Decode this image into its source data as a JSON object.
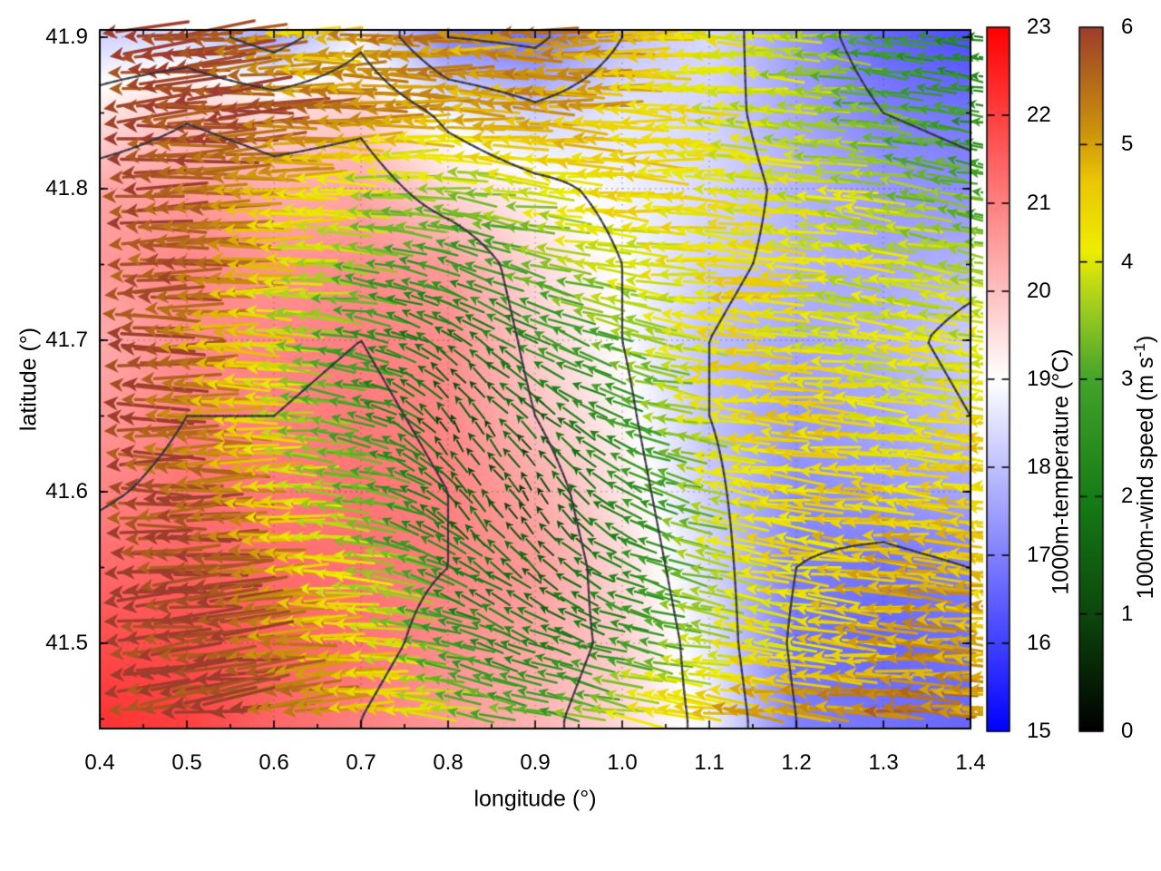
{
  "chart_data": {
    "type": "heatmap",
    "subtype": "temperature field with contour lines and wind-vector overlay colored by wind speed",
    "xlabel": "longitude (°)",
    "ylabel": "latitude (°)",
    "xlim": [
      0.4,
      1.4
    ],
    "ylim": [
      41.4437,
      41.9048
    ],
    "x_ticks": [
      0.4,
      0.5,
      0.6,
      0.7,
      0.8,
      0.9,
      1.0,
      1.1,
      1.2,
      1.3,
      1.4
    ],
    "x_tick_labels": [
      "0.4",
      "0.5",
      "0.6",
      "0.7",
      "0.8",
      "0.9",
      "1.0",
      "1.1",
      "1.2",
      "1.3",
      "1.4"
    ],
    "y_ticks": [
      41.5,
      41.6,
      41.7,
      41.8,
      41.9
    ],
    "y_tick_labels": [
      "41.5",
      "41.6",
      "41.7",
      "41.8",
      "41.9"
    ],
    "grid_dotted_at_major_ticks": true,
    "contour_levels": [
      17,
      18,
      19,
      20,
      21
    ],
    "contour_color": "#32323c",
    "grids": {
      "lon": [
        0.4,
        0.5,
        0.6,
        0.7,
        0.8,
        0.9,
        1.0,
        1.1,
        1.2,
        1.3,
        1.4
      ],
      "lat": [
        41.9,
        41.85,
        41.8,
        41.75,
        41.7,
        41.65,
        41.6,
        41.55,
        41.5,
        41.45
      ],
      "temperature": [
        [
          18.3,
          18.4,
          17.6,
          18.8,
          17.0,
          16.8,
          18.0,
          18.4,
          17.4,
          16.6,
          16.2
        ],
        [
          19.4,
          19.9,
          19.6,
          19.8,
          18.8,
          18.2,
          18.6,
          18.3,
          17.6,
          17.0,
          16.8
        ],
        [
          20.4,
          20.6,
          20.3,
          20.4,
          19.6,
          19.2,
          18.8,
          18.4,
          17.8,
          17.4,
          17.2
        ],
        [
          20.6,
          20.9,
          20.7,
          20.8,
          20.6,
          19.6,
          19.0,
          18.2,
          17.8,
          17.6,
          17.8
        ],
        [
          20.3,
          20.8,
          20.9,
          21.0,
          20.8,
          19.8,
          19.0,
          18.0,
          17.6,
          17.8,
          18.2
        ],
        [
          20.6,
          21.0,
          21.0,
          21.1,
          20.9,
          20.0,
          19.2,
          18.0,
          17.4,
          17.6,
          18.0
        ],
        [
          20.9,
          21.2,
          21.1,
          21.2,
          21.0,
          20.4,
          19.4,
          18.2,
          17.2,
          17.4,
          17.6
        ],
        [
          21.3,
          21.5,
          21.3,
          21.2,
          21.0,
          20.6,
          19.6,
          18.4,
          17.0,
          16.8,
          17.0
        ],
        [
          21.8,
          21.8,
          21.5,
          21.2,
          20.8,
          20.4,
          19.8,
          18.6,
          16.8,
          16.6,
          16.8
        ],
        [
          22.2,
          22.0,
          21.4,
          21.0,
          20.6,
          20.2,
          19.6,
          18.8,
          17.0,
          16.8,
          16.6
        ]
      ],
      "wind_speed": [
        [
          6.0,
          6.0,
          4.5,
          5.5,
          5.0,
          5.5,
          4.5,
          4.0,
          3.5,
          2.6,
          2.0
        ],
        [
          6.0,
          6.0,
          5.5,
          5.0,
          5.0,
          5.0,
          4.5,
          4.0,
          3.5,
          3.0,
          2.5
        ],
        [
          6.0,
          5.5,
          4.5,
          3.5,
          3.5,
          4.0,
          4.5,
          4.0,
          4.0,
          3.5,
          3.0
        ],
        [
          6.0,
          5.5,
          4.0,
          3.0,
          2.5,
          3.5,
          4.0,
          4.5,
          4.0,
          4.0,
          3.5
        ],
        [
          6.0,
          5.0,
          3.5,
          2.5,
          1.5,
          2.5,
          3.5,
          4.5,
          4.0,
          4.0,
          4.0
        ],
        [
          6.0,
          5.0,
          3.5,
          2.5,
          1.0,
          1.5,
          3.0,
          4.5,
          4.5,
          4.0,
          4.5
        ],
        [
          6.0,
          5.5,
          4.0,
          3.0,
          1.5,
          1.0,
          2.5,
          4.0,
          4.5,
          4.5,
          4.5
        ],
        [
          6.0,
          6.0,
          4.5,
          3.5,
          2.0,
          1.5,
          2.5,
          4.0,
          4.5,
          5.0,
          4.5
        ],
        [
          6.0,
          6.0,
          5.0,
          4.0,
          2.5,
          2.0,
          3.0,
          4.0,
          4.5,
          5.0,
          5.0
        ],
        [
          6.0,
          6.0,
          5.5,
          4.5,
          3.5,
          3.0,
          4.5,
          5.0,
          5.2,
          5.5,
          5.0
        ]
      ],
      "wind_dir_deg": [
        [
          185,
          185,
          182,
          180,
          178,
          180,
          180,
          178,
          175,
          172,
          170
        ],
        [
          183,
          184,
          182,
          180,
          178,
          178,
          178,
          176,
          174,
          172,
          170
        ],
        [
          182,
          183,
          180,
          178,
          172,
          175,
          178,
          176,
          174,
          172,
          170
        ],
        [
          180,
          182,
          178,
          170,
          160,
          168,
          175,
          176,
          175,
          172,
          170
        ],
        [
          180,
          180,
          176,
          165,
          140,
          155,
          170,
          176,
          175,
          173,
          172
        ],
        [
          180,
          180,
          175,
          162,
          120,
          140,
          165,
          175,
          176,
          174,
          172
        ],
        [
          180,
          182,
          178,
          168,
          130,
          120,
          160,
          172,
          176,
          175,
          173
        ],
        [
          182,
          184,
          180,
          172,
          150,
          140,
          160,
          170,
          175,
          176,
          174
        ],
        [
          186,
          186,
          182,
          176,
          165,
          160,
          168,
          172,
          175,
          176,
          175
        ],
        [
          188,
          188,
          184,
          180,
          172,
          170,
          172,
          174,
          176,
          178,
          176
        ]
      ]
    },
    "colorbars": [
      {
        "label": "1000m-temperature (°C)",
        "range": [
          15,
          23
        ],
        "ticks": [
          15,
          16,
          17,
          18,
          19,
          20,
          21,
          22,
          23
        ],
        "tick_labels": [
          "15",
          "16",
          "17",
          "18",
          "19",
          "20",
          "21",
          "22",
          "23"
        ],
        "stops": [
          [
            15,
            "#0000ff"
          ],
          [
            19,
            "#ffffff"
          ],
          [
            23,
            "#ff0000"
          ]
        ]
      },
      {
        "label_prefix": "1000m-wind speed (m s",
        "label_sup": "-1",
        "label_suffix": ")",
        "range": [
          0,
          6
        ],
        "ticks": [
          0,
          1,
          2,
          3,
          4,
          5,
          6
        ],
        "tick_labels": [
          "0",
          "1",
          "2",
          "3",
          "4",
          "5",
          "6"
        ],
        "stops": [
          [
            0,
            "#000000"
          ],
          [
            1,
            "#0c470c"
          ],
          [
            2,
            "#167d16"
          ],
          [
            3,
            "#43a32a"
          ],
          [
            3.6,
            "#9ccc20"
          ],
          [
            4.1,
            "#eded00"
          ],
          [
            4.7,
            "#eac505"
          ],
          [
            5.1,
            "#cd940b"
          ],
          [
            5.6,
            "#b1651b"
          ],
          [
            6,
            "#9d3d2d"
          ]
        ]
      }
    ]
  }
}
